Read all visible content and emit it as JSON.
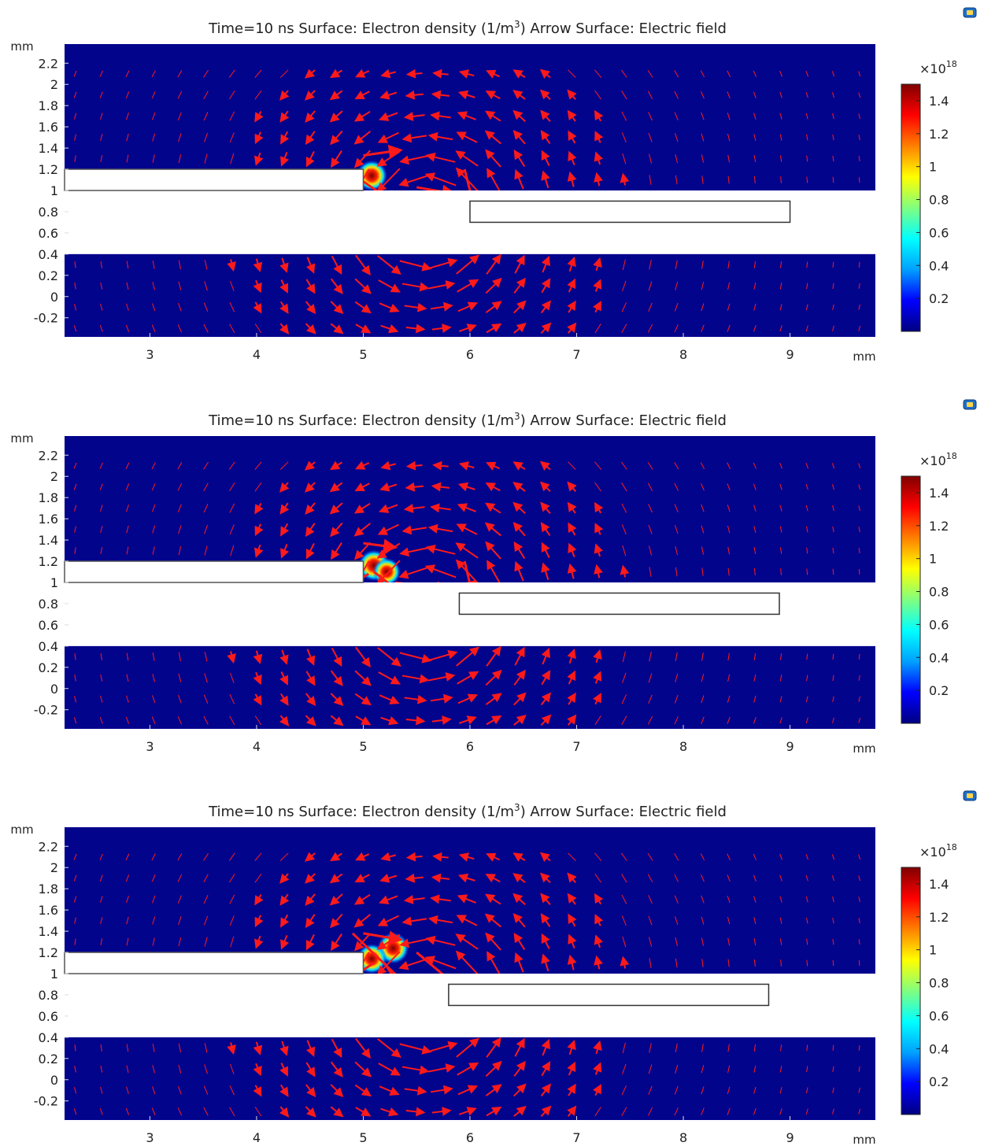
{
  "colors": {
    "background": "#02048c",
    "geometry_fill": "#ffffff",
    "geometry_stroke": "#555555",
    "arrow": "#ff1a1a",
    "colorbar_stops": [
      "#000080",
      "#0000ff",
      "#00a0ff",
      "#00ffff",
      "#80ff80",
      "#ffff00",
      "#ff8000",
      "#ff0000",
      "#800000"
    ]
  },
  "icons": {
    "panel_icon": "camera-view-icon"
  },
  "chart_data": [
    {
      "type": "heatmap",
      "title_prefix": "Time=10 ns",
      "title_surface": "Surface: Electron density (1/m",
      "title_sup": "3",
      "title_suffix": ")  Arrow Surface: Electric field",
      "xunit": "mm",
      "yunit": "mm",
      "xlim": [
        2.2,
        9.8
      ],
      "ylim": [
        -0.38,
        2.38
      ],
      "xticks": [
        "3",
        "4",
        "5",
        "6",
        "7",
        "8",
        "9"
      ],
      "yticks": [
        "2.2",
        "2",
        "1.8",
        "1.6",
        "1.4",
        "1.2",
        "1",
        "0.8",
        "0.6",
        "0.4",
        "0.2",
        "0",
        "-0.2"
      ],
      "colorbar": {
        "exponent_base": "×10",
        "exponent": "18",
        "ticks": [
          "1.4",
          "1.2",
          "1",
          "0.8",
          "0.6",
          "0.4",
          "0.2"
        ],
        "range": [
          0,
          1.5
        ]
      },
      "geometry": {
        "gap_band": [
          0.4,
          1.0
        ],
        "left_electrode": {
          "x": [
            2.2,
            5.0
          ],
          "y": [
            1.0,
            1.2
          ]
        },
        "right_electrode": {
          "x": [
            6.0,
            9.0
          ],
          "y": [
            0.7,
            0.9
          ]
        }
      },
      "hotspots": [
        {
          "x": 5.08,
          "y": 1.14,
          "peak": 1.4
        }
      ],
      "strong_arrows": [
        {
          "x": [
            4.95,
            5.38
          ],
          "y": [
            1.12,
            0.82
          ]
        },
        {
          "x": [
            5.0,
            5.35
          ],
          "y": [
            1.33,
            1.38
          ]
        },
        {
          "x": [
            5.5,
            5.85
          ],
          "y": [
            1.03,
            0.97
          ]
        },
        {
          "x": [
            5.95,
            6.05
          ],
          "y": [
            1.2,
            0.8
          ]
        },
        {
          "x": [
            5.9,
            6.02
          ],
          "y": [
            0.55,
            0.75
          ]
        }
      ]
    },
    {
      "type": "heatmap",
      "title_prefix": "Time=10 ns",
      "title_surface": "Surface: Electron density (1/m",
      "title_sup": "3",
      "title_suffix": ")  Arrow Surface: Electric field",
      "xunit": "mm",
      "yunit": "mm",
      "xlim": [
        2.2,
        9.8
      ],
      "ylim": [
        -0.38,
        2.38
      ],
      "xticks": [
        "3",
        "4",
        "5",
        "6",
        "7",
        "8",
        "9"
      ],
      "yticks": [
        "2.2",
        "2",
        "1.8",
        "1.6",
        "1.4",
        "1.2",
        "1",
        "0.8",
        "0.6",
        "0.4",
        "0.2",
        "0",
        "-0.2"
      ],
      "colorbar": {
        "exponent_base": "×10",
        "exponent": "18",
        "ticks": [
          "1.4",
          "1.2",
          "1",
          "0.8",
          "0.6",
          "0.4",
          "0.2"
        ],
        "range": [
          0,
          1.5
        ]
      },
      "geometry": {
        "gap_band": [
          0.4,
          1.0
        ],
        "left_electrode": {
          "x": [
            2.2,
            5.0
          ],
          "y": [
            1.0,
            1.2
          ]
        },
        "right_electrode": {
          "x": [
            5.9,
            8.9
          ],
          "y": [
            0.7,
            0.9
          ]
        }
      },
      "hotspots": [
        {
          "x": 5.1,
          "y": 1.16,
          "peak": 1.5
        },
        {
          "x": 5.22,
          "y": 1.1,
          "peak": 0.9
        }
      ],
      "strong_arrows": [
        {
          "x": [
            5.05,
            4.65
          ],
          "y": [
            1.08,
            0.85
          ]
        },
        {
          "x": [
            5.1,
            5.38
          ],
          "y": [
            1.1,
            0.88
          ]
        },
        {
          "x": [
            5.3,
            5.8
          ],
          "y": [
            1.0,
            0.93
          ]
        },
        {
          "x": [
            5.0,
            5.3
          ],
          "y": [
            1.37,
            1.33
          ]
        },
        {
          "x": [
            5.95,
            6.02
          ],
          "y": [
            1.2,
            0.9
          ]
        }
      ]
    },
    {
      "type": "heatmap",
      "title_prefix": "Time=10 ns",
      "title_surface": "Surface: Electron density (1/m",
      "title_sup": "3",
      "title_suffix": ")  Arrow Surface: Electric field",
      "xunit": "mm",
      "yunit": "mm",
      "xlim": [
        2.2,
        9.8
      ],
      "ylim": [
        -0.38,
        2.38
      ],
      "xticks": [
        "3",
        "4",
        "5",
        "6",
        "7",
        "8",
        "9"
      ],
      "yticks": [
        "2.2",
        "2",
        "1.8",
        "1.6",
        "1.4",
        "1.2",
        "1",
        "0.8",
        "0.6",
        "0.4",
        "0.2",
        "0",
        "-0.2"
      ],
      "colorbar": {
        "exponent_base": "×10",
        "exponent": "18",
        "ticks": [
          "1.4",
          "1.2",
          "1",
          "0.8",
          "0.6",
          "0.4",
          "0.2"
        ],
        "range": [
          0,
          1.5
        ]
      },
      "geometry": {
        "gap_band": [
          0.4,
          1.0
        ],
        "left_electrode": {
          "x": [
            2.2,
            5.0
          ],
          "y": [
            1.0,
            1.2
          ]
        },
        "right_electrode": {
          "x": [
            5.8,
            8.8
          ],
          "y": [
            0.7,
            0.9
          ]
        }
      },
      "hotspots": [
        {
          "x": 5.28,
          "y": 1.24,
          "peak": 1.5
        },
        {
          "x": 5.08,
          "y": 1.14,
          "peak": 1.3
        }
      ],
      "strong_arrows": [
        {
          "x": [
            5.1,
            4.6
          ],
          "y": [
            1.1,
            0.78
          ]
        },
        {
          "x": [
            4.9,
            5.45
          ],
          "y": [
            1.38,
            0.85
          ]
        },
        {
          "x": [
            5.2,
            5.4
          ],
          "y": [
            1.1,
            0.78
          ]
        },
        {
          "x": [
            5.5,
            5.95
          ],
          "y": [
            1.2,
            0.82
          ]
        },
        {
          "x": [
            5.5,
            5.9
          ],
          "y": [
            0.57,
            0.76
          ]
        },
        {
          "x": [
            5.0,
            5.35
          ],
          "y": [
            1.38,
            1.32
          ]
        },
        {
          "x": [
            5.35,
            5.65
          ],
          "y": [
            0.93,
            0.88
          ]
        },
        {
          "x": [
            5.6,
            5.9
          ],
          "y": [
            0.82,
            0.78
          ]
        }
      ]
    }
  ]
}
